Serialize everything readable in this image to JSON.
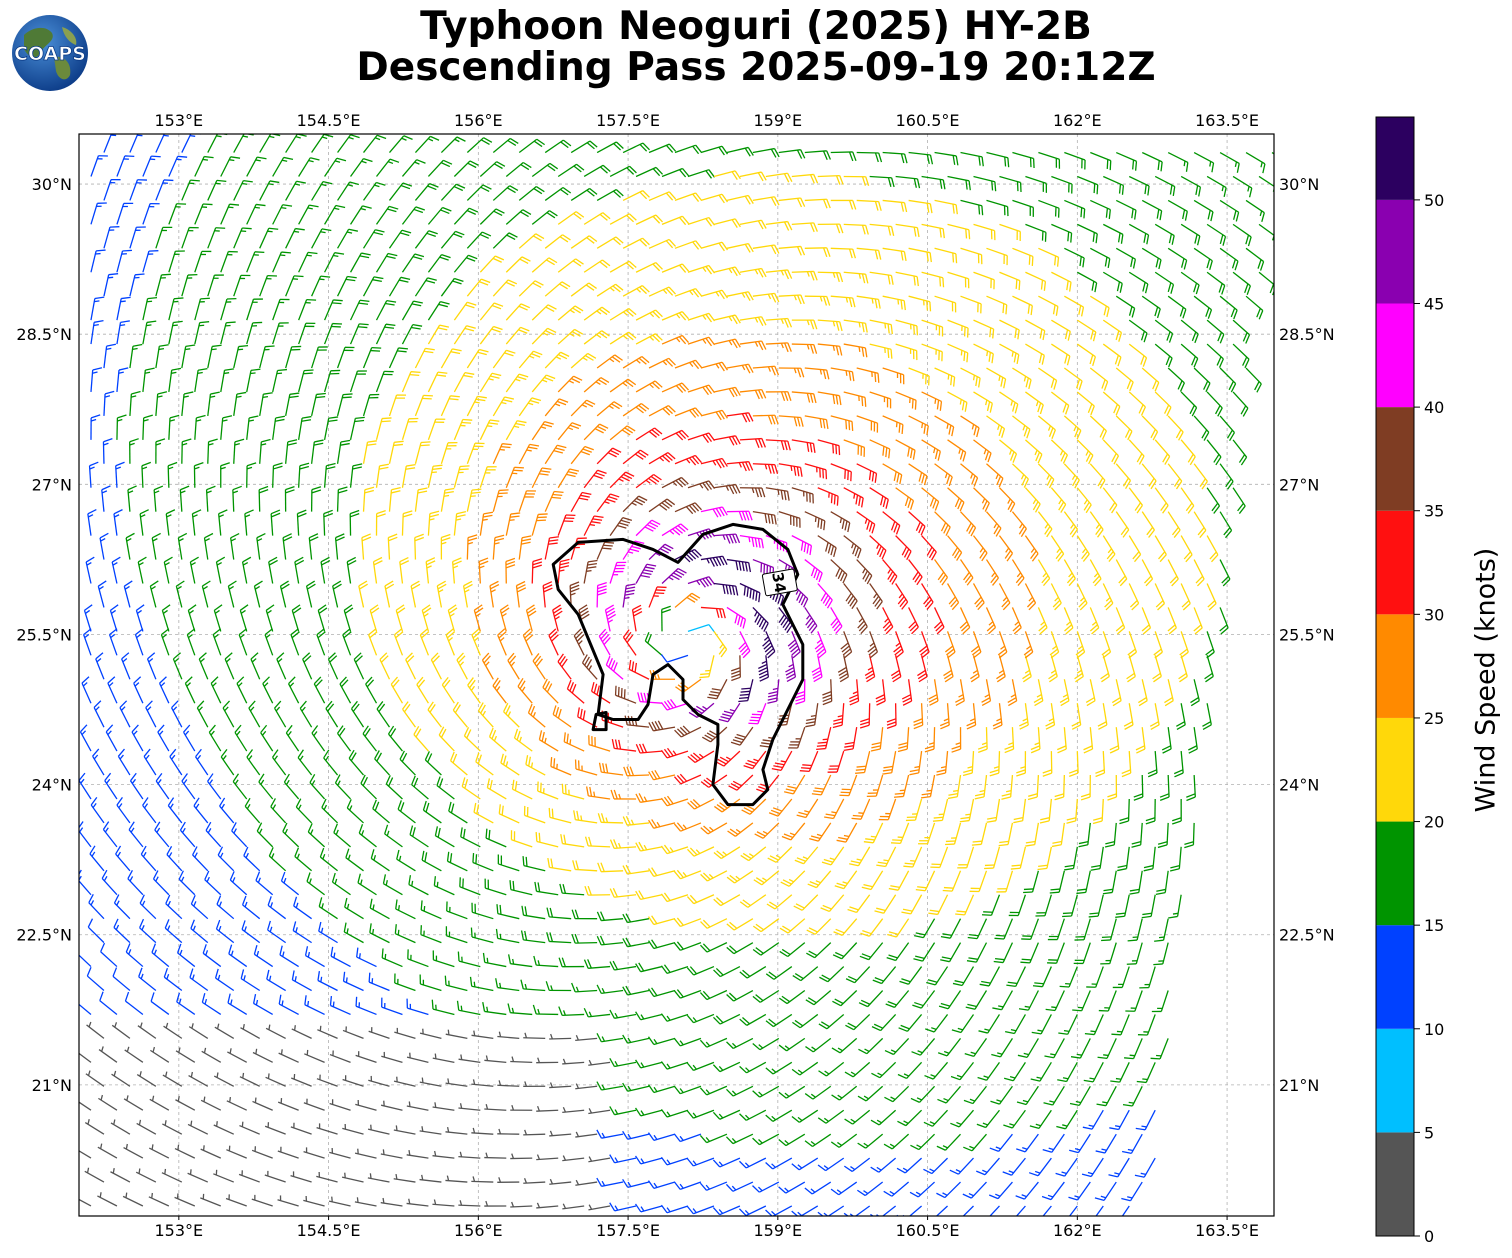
{
  "title": {
    "line1": "Typhoon Neoguri (2025) HY-2B",
    "line2": "Descending Pass 2025-09-19 20:12Z"
  },
  "logo": {
    "text": "COAPS",
    "icon": "globe-icon"
  },
  "map": {
    "lon_ticks": [
      153,
      154.5,
      156,
      157.5,
      159,
      160.5,
      162,
      163.5
    ],
    "lon_tick_labels": [
      "153°E",
      "154.5°E",
      "156°E",
      "157.5°E",
      "159°E",
      "160.5°E",
      "162°E",
      "163.5°E"
    ],
    "lat_ticks": [
      30,
      28.5,
      27,
      25.5,
      24,
      22.5,
      21
    ],
    "lat_tick_labels": [
      "30°N",
      "28.5°N",
      "27°N",
      "25.5°N",
      "24°N",
      "22.5°N",
      "21°N"
    ],
    "lon_range": [
      152.0,
      163.97
    ],
    "lat_range": [
      19.69,
      30.5
    ],
    "gridlines": true,
    "storm_center": {
      "lon": 158.1,
      "lat": 25.45
    },
    "contour": {
      "label": "34",
      "units": "knots",
      "polygon": [
        [
          156.75,
          26.2
        ],
        [
          157.0,
          26.42
        ],
        [
          157.45,
          26.45
        ],
        [
          157.75,
          26.35
        ],
        [
          158.0,
          26.22
        ],
        [
          158.25,
          26.5
        ],
        [
          158.55,
          26.6
        ],
        [
          158.85,
          26.55
        ],
        [
          159.1,
          26.35
        ],
        [
          159.2,
          26.1
        ],
        [
          159.05,
          25.8
        ],
        [
          159.15,
          25.6
        ],
        [
          159.25,
          25.4
        ],
        [
          159.25,
          25.05
        ],
        [
          159.1,
          24.75
        ],
        [
          158.95,
          24.45
        ],
        [
          158.85,
          24.15
        ],
        [
          158.9,
          23.95
        ],
        [
          158.75,
          23.8
        ],
        [
          158.5,
          23.8
        ],
        [
          158.35,
          24.0
        ],
        [
          158.4,
          24.4
        ],
        [
          158.4,
          24.6
        ],
        [
          158.2,
          24.7
        ],
        [
          158.05,
          24.85
        ],
        [
          158.05,
          25.05
        ],
        [
          157.9,
          25.2
        ],
        [
          157.75,
          25.1
        ],
        [
          157.7,
          24.8
        ],
        [
          157.6,
          24.65
        ],
        [
          157.35,
          24.65
        ],
        [
          157.2,
          24.7
        ],
        [
          157.25,
          25.1
        ],
        [
          157.0,
          25.7
        ],
        [
          156.8,
          25.95
        ]
      ],
      "islet": [
        [
          157.15,
          24.55
        ],
        [
          157.28,
          24.55
        ],
        [
          157.28,
          24.72
        ],
        [
          157.18,
          24.7
        ]
      ]
    },
    "swath_edge": [
      [
        162.75,
        19.69
      ],
      [
        163.97,
        30.32
      ]
    ]
  },
  "colorbar": {
    "label": "Wind Speed (knots)",
    "bounds": [
      0,
      5,
      10,
      15,
      20,
      25,
      30,
      35,
      40,
      45,
      50,
      54
    ],
    "tick_values": [
      0,
      5,
      10,
      15,
      20,
      25,
      30,
      35,
      40,
      45,
      50
    ],
    "tick_labels": [
      "0",
      "5",
      "10",
      "15",
      "20",
      "25",
      "30",
      "35",
      "40",
      "45",
      "50"
    ],
    "colors": [
      "#555555",
      "#00bfff",
      "#0041ff",
      "#009400",
      "#ffd80a",
      "#ff8a00",
      "#ff1010",
      "#7f3d23",
      "#ff00ff",
      "#8a00b0",
      "#2c0060"
    ]
  },
  "wind_field": {
    "type": "vector",
    "center": {
      "lon": 158.1,
      "lat": 25.45
    },
    "max_speed_kt": 50,
    "radius_of_max_wind_deg": 0.7,
    "decay_exponent": 0.55,
    "inflow_angle_deg": 18,
    "grid_spacing_deg": 0.26
  }
}
